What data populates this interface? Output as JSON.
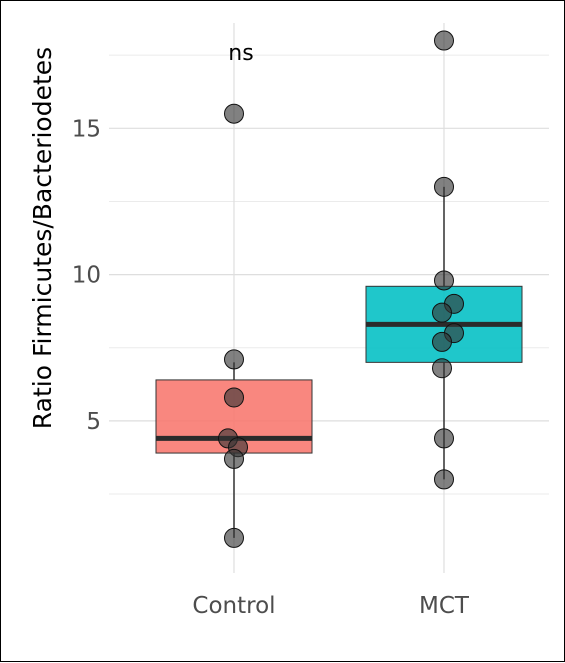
{
  "chart_data": {
    "type": "boxplot",
    "ylabel": "Ratio Firmicutes/Bacteriodetes",
    "xlabel": "",
    "categories": [
      "Control",
      "MCT"
    ],
    "yticks": [
      5,
      10,
      15
    ],
    "ylim": [
      -0.2,
      18.6
    ],
    "grid": true,
    "annotation": "ns",
    "boxes": [
      {
        "category": "Control",
        "color": "#F8766D",
        "min": 1.0,
        "q1": 3.9,
        "median": 4.4,
        "q3": 6.4,
        "max": 7.0
      },
      {
        "category": "MCT",
        "color": "#00BFC4",
        "min": 3.0,
        "q1": 7.0,
        "median": 8.3,
        "q3": 9.6,
        "max": 13.0
      }
    ],
    "points": [
      {
        "category": "Control",
        "values": [
          15.5,
          7.1,
          5.8,
          4.4,
          4.1,
          3.7,
          1.0
        ]
      },
      {
        "category": "MCT",
        "values": [
          18.0,
          13.0,
          9.8,
          9.0,
          8.7,
          8.0,
          7.7,
          6.8,
          4.4,
          3.0
        ]
      }
    ]
  }
}
